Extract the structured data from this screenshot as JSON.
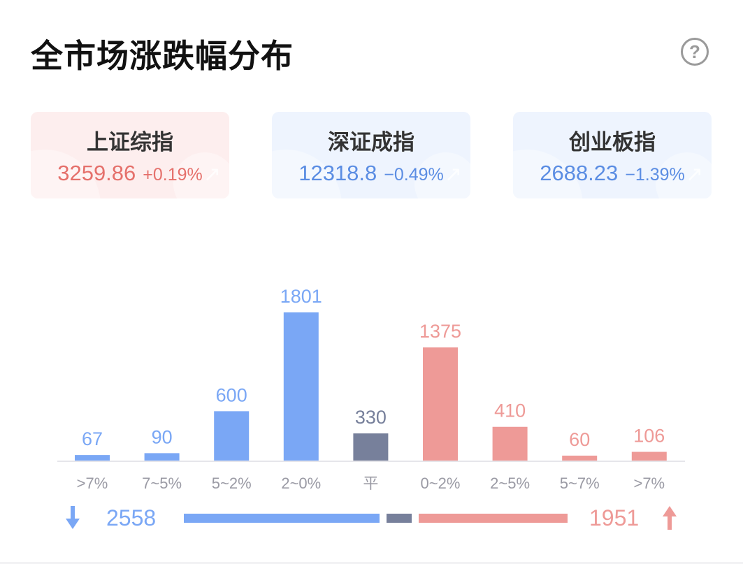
{
  "title": "全市场涨跌幅分布",
  "help_icon": "question-circle-icon",
  "colors": {
    "down": "#7aa7f5",
    "flat": "#77809b",
    "up": "#ee9a97",
    "up_text": "#e5706b",
    "down_text": "#5b8de3"
  },
  "indices": [
    {
      "name": "上证综指",
      "value": "3259.86",
      "change": "+0.19%",
      "trend": "up"
    },
    {
      "name": "深证成指",
      "value": "12318.8",
      "change": "−0.49%",
      "trend": "down"
    },
    {
      "name": "创业板指",
      "value": "2688.23",
      "change": "−1.39%",
      "trend": "down"
    }
  ],
  "chart_data": {
    "type": "bar",
    "categories": [
      ">7%",
      "7~5%",
      "5~2%",
      "2~0%",
      "平",
      "0~2%",
      "2~5%",
      "5~7%",
      ">7%"
    ],
    "values": [
      67,
      90,
      600,
      1801,
      330,
      1375,
      410,
      60,
      106
    ],
    "groups": [
      "down",
      "down",
      "down",
      "down",
      "flat",
      "up",
      "up",
      "up",
      "up"
    ],
    "ylim": [
      0,
      1801
    ]
  },
  "summary": {
    "down_total": "2558",
    "up_total": "1951",
    "flat_total": 330,
    "down_icon": "arrow-down-icon",
    "up_icon": "arrow-up-icon"
  }
}
